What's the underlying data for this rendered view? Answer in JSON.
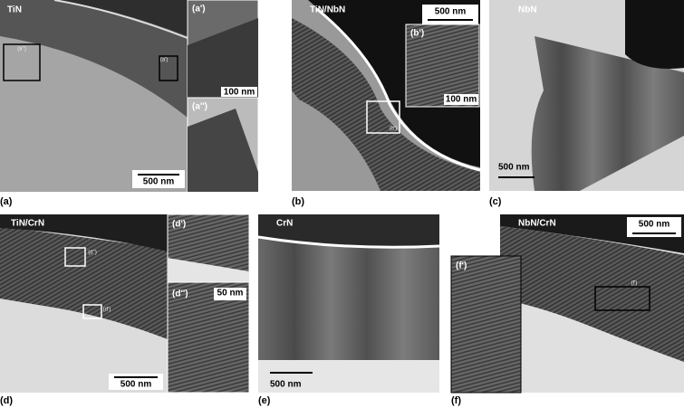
{
  "panels": [
    {
      "label": "(a)",
      "title": "TiN",
      "scale_bar": "500 nm",
      "boxes": [
        "(a'')",
        "(a')"
      ],
      "insets": [
        {
          "label": "(a')",
          "scale_bar": "100 nm"
        },
        {
          "label": "(a'')"
        }
      ]
    },
    {
      "label": "(b)",
      "title": "TiN/NbN",
      "scale_bar": "500 nm",
      "boxes": [
        "(b')"
      ],
      "insets": [
        {
          "label": "(b')",
          "scale_bar": "100 nm"
        }
      ]
    },
    {
      "label": "(c)",
      "title": "NbN",
      "scale_bar": "500 nm"
    },
    {
      "label": "(d)",
      "title": "TiN/CrN",
      "scale_bar": "500 nm",
      "boxes": [
        "(d'')",
        "(d')"
      ],
      "insets": [
        {
          "label": "(d')"
        },
        {
          "label": "(d'')",
          "scale_bar": "50 nm"
        }
      ]
    },
    {
      "label": "(e)",
      "title": "CrN",
      "scale_bar": "500 nm"
    },
    {
      "label": "(f)",
      "title": "NbN/CrN",
      "scale_bar": "500 nm",
      "boxes": [
        "(f')"
      ],
      "insets": [
        {
          "label": "(f')"
        }
      ]
    }
  ]
}
